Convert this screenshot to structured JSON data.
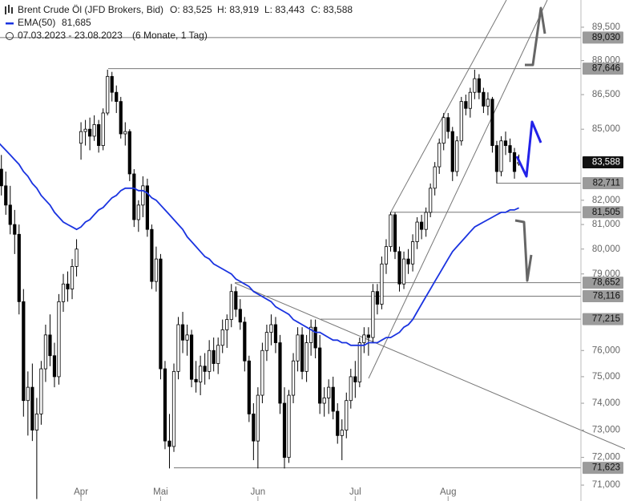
{
  "chart_data": {
    "type": "candlestick",
    "title": "Brent Crude Öl (JFD Brokers, Bid)",
    "ohlc_text": [
      "O: 83,525",
      "H: 83,919",
      "L: 83,443",
      "C: 83,588"
    ],
    "date_range": "07.03.2023 - 23.08.2023",
    "period": "(6 Monate, 1 Tag)",
    "categories": [
      null,
      null,
      null,
      null,
      null,
      null,
      null,
      null,
      null,
      null,
      null,
      null,
      null,
      null,
      null,
      null,
      null,
      null,
      null,
      "Apr",
      null,
      null,
      null,
      null,
      null,
      null,
      null,
      null,
      null,
      null,
      null,
      null,
      null,
      null,
      null,
      null,
      null,
      "Mai",
      null,
      null,
      null,
      null,
      null,
      null,
      null,
      null,
      null,
      null,
      null,
      null,
      null,
      null,
      null,
      null,
      null,
      null,
      null,
      null,
      null,
      "Jun",
      null,
      null,
      null,
      null,
      null,
      null,
      null,
      null,
      null,
      null,
      null,
      null,
      null,
      null,
      null,
      null,
      null,
      null,
      null,
      null,
      null,
      "Jul",
      null,
      null,
      null,
      null,
      null,
      null,
      null,
      null,
      null,
      null,
      null,
      null,
      null,
      null,
      null,
      null,
      null,
      null,
      null,
      null,
      "Aug",
      null,
      null,
      null,
      null,
      null,
      null,
      null,
      null,
      null,
      null,
      null,
      null,
      null,
      null,
      null,
      null
    ],
    "open": [
      86.5,
      83.3,
      82.6,
      81.8,
      81.0,
      80.6,
      77.9,
      74.1,
      74.6,
      73.0,
      73.6,
      75.3,
      76.6,
      75.8,
      75.0,
      77.9,
      78.6,
      78.4,
      79.3,
      84.4,
      84.9,
      85.0,
      84.7,
      85.2,
      84.3,
      85.7,
      87.3,
      86.6,
      86.2,
      84.8,
      84.9,
      83.1,
      81.2,
      81.8,
      82.6,
      80.8,
      78.7,
      79.6,
      75.3,
      72.6,
      72.4,
      75.2,
      77.0,
      76.4,
      76.6,
      74.9,
      74.8,
      75.4,
      75.2,
      76.0,
      75.5,
      76.2,
      76.8,
      77.2,
      78.3,
      77.6,
      77.1,
      75.6,
      73.6,
      72.6,
      74.3,
      76.0,
      76.7,
      77.0,
      76.3,
      74.0,
      72.0,
      74.3,
      75.6,
      76.6,
      75.2,
      76.3,
      76.9,
      76.1,
      74.0,
      74.2,
      74.6,
      73.7,
      72.8,
      73.0,
      74.1,
      75.0,
      74.8,
      76.3,
      76.6,
      76.5,
      78.3,
      77.8,
      79.4,
      80.1,
      81.4,
      79.9,
      78.6,
      79.6,
      79.4,
      80.3,
      81.1,
      80.8,
      81.5,
      82.5,
      83.4,
      84.4,
      85.5,
      84.9,
      83.2,
      84.5,
      86.2,
      85.9,
      86.6,
      87.2,
      86.6,
      86.0,
      86.3,
      84.3,
      83.2,
      84.5,
      84.3,
      84.0,
      83.525
    ],
    "high": [
      86.8,
      83.9,
      83.2,
      82.6,
      81.6,
      81.0,
      78.4,
      75.2,
      75.5,
      74.2,
      75.6,
      77.0,
      77.4,
      76.3,
      78.2,
      79.0,
      79.1,
      79.6,
      80.4,
      85.3,
      85.4,
      85.5,
      85.6,
      85.4,
      85.9,
      87.6,
      87.5,
      86.9,
      86.4,
      85.3,
      85.0,
      83.3,
      82.0,
      83.0,
      82.9,
      81.0,
      80.1,
      79.8,
      75.6,
      73.6,
      75.5,
      77.3,
      77.5,
      77.0,
      76.8,
      75.6,
      75.8,
      75.9,
      76.4,
      76.5,
      76.5,
      77.2,
      77.4,
      78.6,
      78.5,
      78.0,
      77.3,
      75.8,
      74.0,
      74.6,
      76.3,
      77.0,
      77.4,
      77.3,
      76.6,
      74.6,
      74.5,
      75.9,
      76.9,
      76.9,
      76.6,
      77.2,
      77.2,
      76.6,
      74.6,
      74.9,
      75.0,
      74.0,
      73.4,
      74.4,
      75.3,
      75.6,
      76.5,
      76.9,
      76.9,
      78.6,
      78.6,
      79.7,
      80.4,
      81.5,
      81.5,
      80.1,
      79.9,
      80.0,
      80.6,
      81.3,
      81.4,
      81.7,
      82.7,
      83.6,
      84.6,
      85.7,
      85.7,
      85.1,
      84.7,
      86.4,
      86.5,
      86.8,
      87.6,
      87.4,
      86.8,
      86.6,
      86.4,
      84.5,
      84.7,
      84.9,
      84.6,
      84.2,
      83.919
    ],
    "low": [
      82.6,
      82.2,
      81.4,
      80.6,
      79.8,
      77.4,
      73.5,
      72.8,
      72.6,
      70.5,
      73.2,
      74.8,
      75.4,
      74.6,
      74.7,
      77.5,
      77.9,
      78.0,
      78.9,
      83.7,
      84.3,
      84.1,
      84.5,
      84.0,
      84.1,
      85.6,
      86.2,
      85.7,
      84.6,
      84.3,
      82.8,
      80.9,
      80.7,
      81.3,
      80.5,
      78.4,
      78.3,
      74.9,
      72.3,
      71.6,
      72.2,
      74.9,
      75.9,
      75.8,
      74.6,
      74.4,
      74.3,
      74.7,
      74.9,
      75.2,
      75.1,
      75.9,
      76.1,
      76.9,
      77.3,
      76.8,
      75.2,
      73.3,
      71.9,
      71.6,
      74.0,
      75.6,
      76.2,
      75.9,
      73.6,
      71.6,
      71.8,
      74.0,
      75.2,
      74.9,
      74.8,
      75.8,
      75.7,
      73.6,
      73.5,
      73.6,
      73.4,
      72.5,
      71.9,
      72.7,
      73.8,
      74.2,
      74.6,
      75.9,
      75.8,
      76.3,
      77.4,
      77.6,
      79.0,
      79.9,
      79.6,
      78.3,
      78.4,
      79.0,
      79.1,
      80.0,
      80.4,
      80.5,
      81.3,
      82.2,
      83.1,
      84.1,
      84.6,
      82.8,
      83.0,
      84.3,
      85.6,
      85.5,
      86.3,
      86.3,
      85.7,
      85.6,
      84.0,
      82.7,
      83.0,
      83.9,
      83.6,
      82.9,
      83.443
    ],
    "close": [
      83.3,
      82.6,
      81.8,
      81.0,
      80.6,
      77.9,
      74.1,
      74.6,
      73.0,
      73.6,
      75.3,
      76.6,
      75.8,
      75.0,
      77.9,
      78.6,
      78.4,
      79.3,
      80.0,
      84.9,
      85.0,
      84.7,
      85.2,
      84.3,
      85.7,
      87.3,
      86.6,
      86.2,
      84.8,
      84.9,
      83.1,
      81.2,
      81.8,
      82.6,
      80.8,
      78.7,
      79.6,
      75.3,
      72.6,
      72.4,
      75.2,
      77.0,
      76.4,
      76.6,
      74.9,
      74.8,
      75.4,
      75.2,
      76.0,
      75.5,
      76.2,
      76.8,
      77.2,
      78.3,
      77.6,
      77.1,
      75.6,
      73.6,
      72.6,
      74.3,
      76.0,
      76.7,
      77.0,
      76.3,
      74.0,
      72.0,
      74.3,
      75.6,
      76.6,
      75.2,
      76.3,
      76.9,
      76.1,
      74.0,
      74.2,
      74.6,
      73.7,
      72.8,
      73.0,
      74.1,
      75.0,
      74.8,
      76.3,
      76.6,
      76.5,
      78.3,
      77.8,
      79.4,
      80.1,
      81.4,
      79.9,
      78.6,
      79.6,
      79.4,
      80.3,
      81.1,
      80.8,
      81.5,
      82.5,
      83.4,
      84.4,
      85.5,
      84.9,
      83.2,
      84.5,
      86.2,
      85.9,
      86.6,
      87.2,
      86.6,
      86.0,
      86.3,
      84.3,
      83.2,
      84.5,
      84.3,
      84.0,
      83.2,
      83.588
    ],
    "ema": {
      "name": "EMA(50)",
      "color": "#1a33e0",
      "value_label": "81,685",
      "values": [
        84.5,
        84.3,
        84.1,
        83.9,
        83.7,
        83.5,
        83.2,
        83.0,
        82.7,
        82.5,
        82.2,
        82.0,
        81.8,
        81.5,
        81.3,
        81.1,
        81.0,
        80.9,
        80.8,
        80.9,
        81.1,
        81.2,
        81.4,
        81.6,
        81.7,
        81.9,
        82.1,
        82.2,
        82.4,
        82.5,
        82.5,
        82.5,
        82.4,
        82.4,
        82.3,
        82.1,
        82.0,
        81.8,
        81.6,
        81.4,
        81.2,
        81.0,
        80.8,
        80.5,
        80.3,
        80.1,
        79.9,
        79.7,
        79.6,
        79.4,
        79.3,
        79.2,
        79.1,
        79.0,
        78.8,
        78.7,
        78.6,
        78.5,
        78.3,
        78.2,
        78.1,
        78.0,
        77.9,
        77.7,
        77.6,
        77.5,
        77.4,
        77.2,
        77.1,
        77.0,
        76.9,
        76.8,
        76.7,
        76.7,
        76.6,
        76.5,
        76.4,
        76.4,
        76.3,
        76.3,
        76.2,
        76.2,
        76.2,
        76.2,
        76.3,
        76.3,
        76.3,
        76.4,
        76.5,
        76.5,
        76.6,
        76.7,
        76.9,
        77.0,
        77.2,
        77.5,
        77.8,
        78.1,
        78.4,
        78.7,
        79.0,
        79.3,
        79.6,
        79.9,
        80.1,
        80.3,
        80.5,
        80.7,
        80.9,
        81.0,
        81.1,
        81.2,
        81.3,
        81.4,
        81.5,
        81.5,
        81.6,
        81.6,
        81.685
      ]
    },
    "log_scale": true,
    "ylim": [
      70.43,
      90.74
    ],
    "yticks": [
      {
        "value": 71,
        "label": "71,000"
      },
      {
        "value": 72,
        "label": "72,000"
      },
      {
        "value": 73,
        "label": "73,000"
      },
      {
        "value": 74,
        "label": "74,000"
      },
      {
        "value": 75,
        "label": "75,000"
      },
      {
        "value": 76,
        "label": "76,000"
      },
      {
        "value": 79,
        "label": "79,000"
      },
      {
        "value": 80,
        "label": "80,000"
      },
      {
        "value": 81,
        "label": "81,000"
      },
      {
        "value": 82,
        "label": "82,000"
      },
      {
        "value": 85,
        "label": "85,000"
      },
      {
        "value": 86.5,
        "label": "86,500"
      },
      {
        "value": 88,
        "label": "88,000"
      },
      {
        "value": 89.5,
        "label": "89,500"
      }
    ],
    "levels": [
      {
        "value": 89.03,
        "label": "89,030"
      },
      {
        "value": 87.646,
        "label": "87,646"
      },
      {
        "value": 82.711,
        "label": "82,711"
      },
      {
        "value": 81.505,
        "label": "81,505"
      },
      {
        "value": 78.652,
        "label": "78,652"
      },
      {
        "value": 78.116,
        "label": "78,116"
      },
      {
        "value": 77.215,
        "label": "77,215"
      },
      {
        "value": 71.623,
        "label": "71,623"
      }
    ],
    "last_price": {
      "value": 83.588,
      "label": "83,588"
    },
    "up_color": "#ffffff",
    "down_color": "#000000",
    "grid": false
  }
}
